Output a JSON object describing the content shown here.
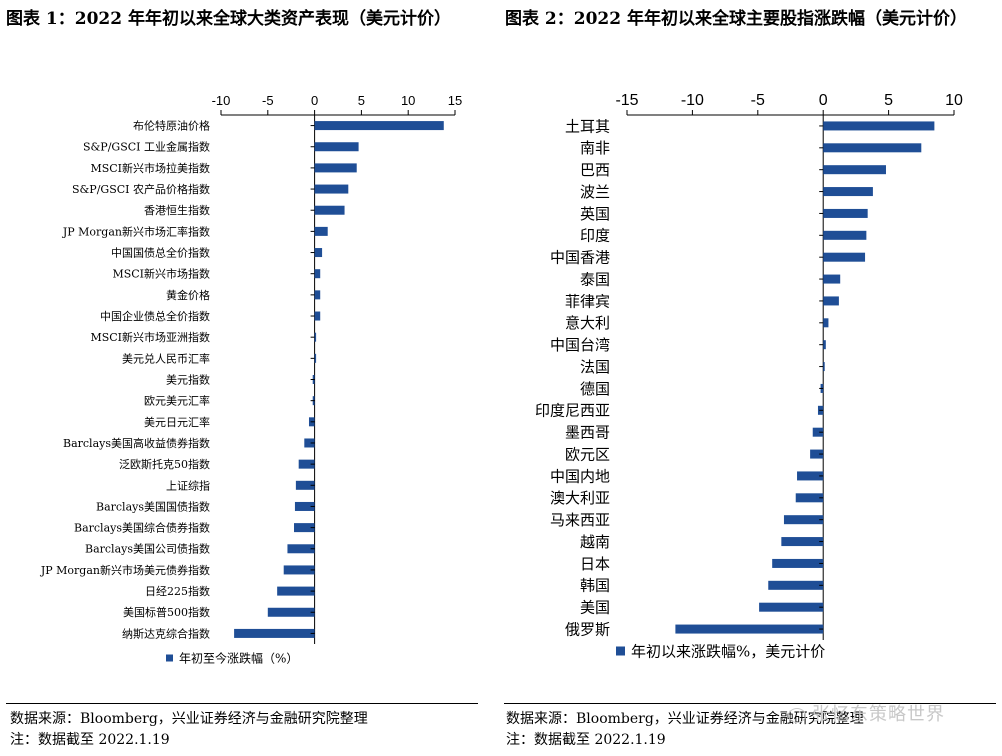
{
  "charts": {
    "left": {
      "title": "图表 1：2022 年年初以来全球大类资产表现（美元计价）"
    },
    "right": {
      "title": "图表 2：2022 年年初以来全球主要股指涨跌幅（美元计价）"
    }
  },
  "footer": {
    "left_source": "数据来源：Bloomberg，兴业证券经济与金融研究院整理",
    "left_note": "注：数据截至 2022.1.19",
    "right_source": "数据来源：Bloomberg，兴业证券经济与金融研究院整理",
    "right_note": "注：数据截至 2022.1.19",
    "watermark": "张忆东策略世界"
  },
  "colors": {
    "bar": "#1f4e96",
    "axis": "#000000"
  },
  "chart_data": [
    {
      "type": "bar",
      "orientation": "horizontal",
      "title": "图表 1：2022 年年初以来全球大类资产表现（美元计价）",
      "xlim": [
        -10,
        15
      ],
      "ticks": [
        -10,
        -5,
        0,
        5,
        10,
        15
      ],
      "categories": [
        "布伦特原油价格",
        "S&P/GSCI 工业金属指数",
        "MSCI新兴市场拉美指数",
        "S&P/GSCI 农产品价格指数",
        "香港恒生指数",
        "JP Morgan新兴市场汇率指数",
        "中国国债总全价指数",
        "MSCI新兴市场指数",
        "黄金价格",
        "中国企业债总全价指数",
        "MSCI新兴市场亚洲指数",
        "美元兑人民币汇率",
        "美元指数",
        "欧元美元汇率",
        "美元日元汇率",
        "Barclays美国高收益债券指数",
        "泛欧斯托克50指数",
        "上证综指",
        "Barclays美国国债指数",
        "Barclays美国综合债券指数",
        "Barclays美国公司债指数",
        "JP Morgan新兴市场美元债券指数",
        "日经225指数",
        "美国标普500指数",
        "纳斯达克综合指数"
      ],
      "series": [
        {
          "name": "年初至今涨跌幅（%）",
          "values": [
            13.8,
            4.7,
            4.5,
            3.6,
            3.2,
            1.4,
            0.8,
            0.6,
            0.6,
            0.6,
            0.0,
            0.0,
            -0.2,
            -0.2,
            -0.6,
            -1.1,
            -1.7,
            -2.0,
            -2.1,
            -2.2,
            -2.9,
            -3.3,
            -4.0,
            -5.0,
            -8.6
          ]
        }
      ]
    },
    {
      "type": "bar",
      "orientation": "horizontal",
      "title": "图表 2：2022 年年初以来全球主要股指涨跌幅（美元计价）",
      "xlim": [
        -15,
        10
      ],
      "ticks": [
        -15,
        -10,
        -5,
        0,
        5,
        10
      ],
      "categories": [
        "土耳其",
        "南非",
        "巴西",
        "波兰",
        "英国",
        "印度",
        "中国香港",
        "泰国",
        "菲律宾",
        "意大利",
        "中国台湾",
        "法国",
        "德国",
        "印度尼西亚",
        "墨西哥",
        "欧元区",
        "中国内地",
        "澳大利亚",
        "马来西亚",
        "越南",
        "日本",
        "韩国",
        "美国",
        "俄罗斯"
      ],
      "series": [
        {
          "name": "年初以来涨跌幅%，美元计价",
          "values": [
            8.5,
            7.5,
            4.8,
            3.8,
            3.4,
            3.3,
            3.2,
            1.3,
            1.2,
            0.4,
            0.2,
            0.1,
            -0.2,
            -0.4,
            -0.8,
            -1.0,
            -2.0,
            -2.1,
            -3.0,
            -3.2,
            -3.9,
            -4.2,
            -4.9,
            -11.3
          ]
        }
      ]
    }
  ]
}
